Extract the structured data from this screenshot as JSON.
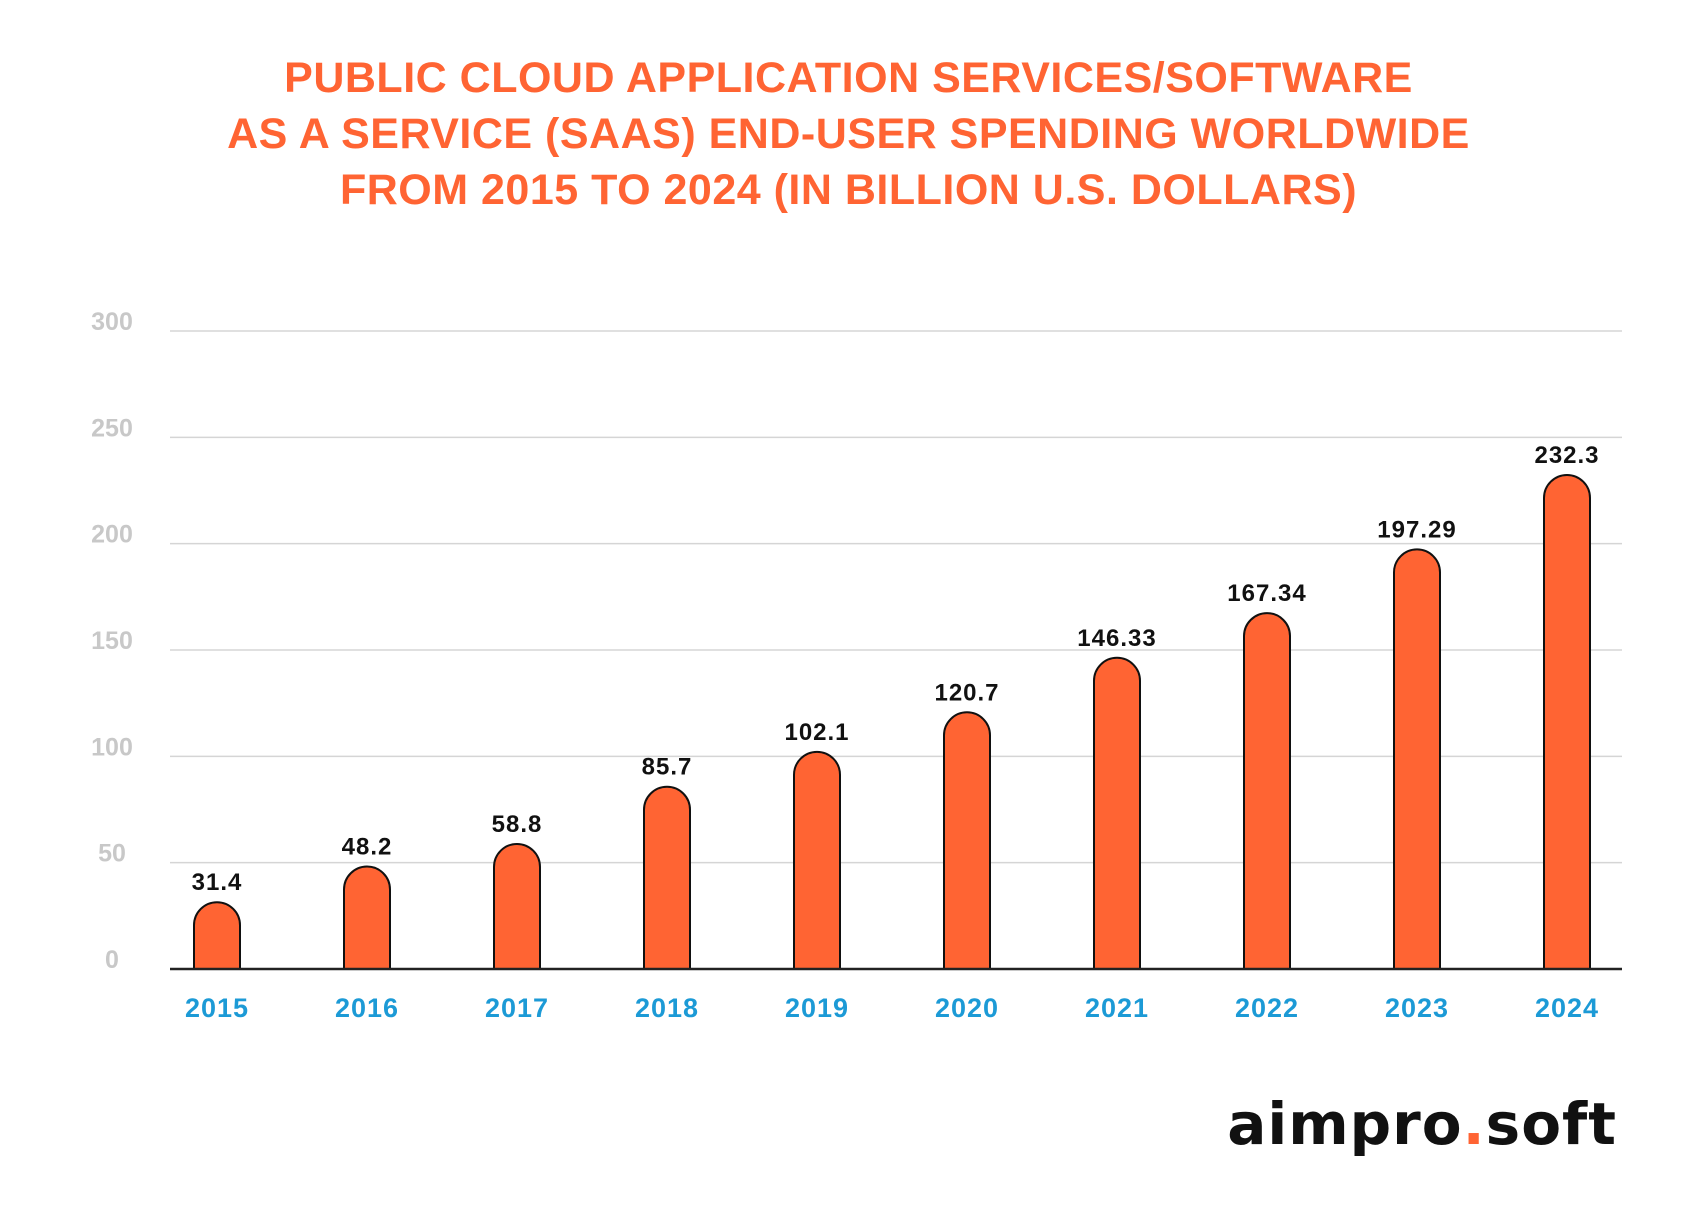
{
  "chart_data": {
    "type": "bar",
    "title_lines": [
      "PUBLIC CLOUD APPLICATION SERVICES/SOFTWARE",
      "AS A SERVICE (SAAS) END-USER SPENDING WORLDWIDE",
      "FROM 2015 TO 2024 (IN BILLION U.S. DOLLARS)"
    ],
    "categories": [
      "2015",
      "2016",
      "2017",
      "2018",
      "2019",
      "2020",
      "2021",
      "2022",
      "2023",
      "2024"
    ],
    "values": [
      31.4,
      48.2,
      58.8,
      85.7,
      102.1,
      120.7,
      146.33,
      167.34,
      197.29,
      232.3
    ],
    "value_labels": [
      "31.4",
      "48.2",
      "58.8",
      "85.7",
      "102.1",
      "120.7",
      "146.33",
      "167.34",
      "197.29",
      "232.3"
    ],
    "yticks": [
      "0",
      "50",
      "100",
      "150",
      "200",
      "250",
      "300"
    ],
    "ylim": [
      0,
      300
    ],
    "xlabel": "",
    "ylabel": "",
    "grid": true,
    "colors": {
      "bar": "#ff6433",
      "bar_outline": "#111111",
      "title": "#ff6433",
      "category_label": "#1c9ad6",
      "tick_label": "#c8c8c8",
      "gridline": "#d5d5d5",
      "axis": "#222222",
      "value_label": "#111111"
    }
  },
  "logo": {
    "part1": "aimpro",
    "dot": ".",
    "part2": "soft"
  }
}
